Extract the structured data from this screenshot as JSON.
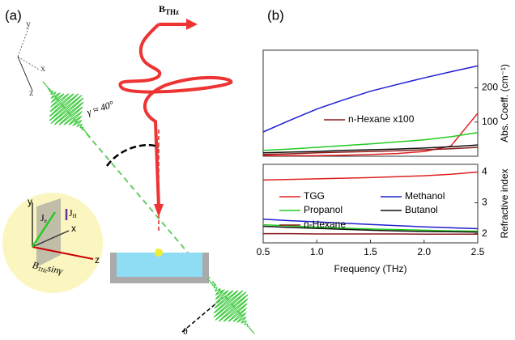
{
  "panel_labels": [
    "(a)",
    "(b)"
  ],
  "diagram": {
    "field": {
      "symbol": "B",
      "subscript": "THz"
    },
    "angle": "γ ≈ 40°",
    "tilt": "θ",
    "inset": {
      "axis_y": "y",
      "axis_x": "x",
      "axis_z": "z",
      "je": {
        "symbol": "J",
        "subscript": "e"
      },
      "jh": {
        "symbol": "J",
        "subscript": "H"
      },
      "projection": {
        "symbol": "B",
        "subscript": "THz",
        "suffix": "sinγ"
      }
    },
    "frame": {
      "axis_y": "y",
      "axis_x": "x",
      "axis_z": "z"
    }
  },
  "chart_data": [
    {
      "type": "line",
      "ylabel": "Abs. Coeff. (cm⁻¹)",
      "x": [
        0.5,
        0.75,
        1.0,
        1.25,
        1.5,
        1.75,
        2.0,
        2.25,
        2.5
      ],
      "xlim": [
        0.5,
        2.5
      ],
      "ylim": [
        0,
        310
      ],
      "yticks": [
        100,
        200
      ],
      "series": [
        {
          "color": "#e02020",
          "values": [
            2,
            2,
            2,
            3,
            5,
            8,
            14,
            30,
            126
          ]
        },
        {
          "color": "#1f1fd0",
          "values": [
            71,
            105,
            138,
            165,
            190,
            210,
            229,
            247,
            264
          ]
        },
        {
          "color": "#22cc22",
          "values": [
            17,
            21,
            26,
            31,
            36,
            42,
            48,
            57,
            69
          ]
        },
        {
          "color": "#111111",
          "values": [
            10,
            12,
            14,
            17,
            19,
            21,
            24,
            28,
            33
          ]
        },
        {
          "name": "n-Hexane x100",
          "color": "#8b1a1a",
          "values": [
            5,
            7,
            10,
            12,
            14,
            16,
            19,
            22,
            26
          ]
        }
      ]
    },
    {
      "type": "line",
      "xlabel": "Frequency (THz)",
      "ylabel": "Refractive index",
      "x": [
        0.5,
        0.75,
        1.0,
        1.25,
        1.5,
        1.75,
        2.0,
        2.25,
        2.5
      ],
      "xlim": [
        0.5,
        2.5
      ],
      "xticks": [
        0.5,
        {
          "value": 1.0,
          "label": "1.0"
        },
        1.5,
        {
          "value": 2.0,
          "label": "2.0"
        },
        2.5
      ],
      "ylim": [
        1.7,
        4.25
      ],
      "yticks": [
        2,
        3,
        4
      ],
      "series": [
        {
          "name": "TGG",
          "color": "#e02020",
          "values": [
            3.74,
            3.76,
            3.78,
            3.8,
            3.82,
            3.85,
            3.88,
            3.93,
            4.0
          ]
        },
        {
          "name": "Methanol",
          "color": "#1f1fd0",
          "values": [
            2.47,
            2.42,
            2.38,
            2.34,
            2.3,
            2.26,
            2.22,
            2.19,
            2.16
          ]
        },
        {
          "name": "Propanol",
          "color": "#22cc22",
          "values": [
            2.29,
            2.25,
            2.21,
            2.18,
            2.15,
            2.13,
            2.11,
            2.09,
            2.08
          ]
        },
        {
          "name": "Butanol",
          "color": "#111111",
          "values": [
            2.24,
            2.2,
            2.17,
            2.14,
            2.11,
            2.09,
            2.07,
            2.06,
            2.05
          ]
        },
        {
          "name": "n-Hexane",
          "color": "#8b1a1a",
          "values": [
            2.0,
            2.0,
            1.99,
            1.99,
            1.99,
            1.99,
            1.98,
            1.98,
            1.98
          ]
        }
      ]
    }
  ]
}
